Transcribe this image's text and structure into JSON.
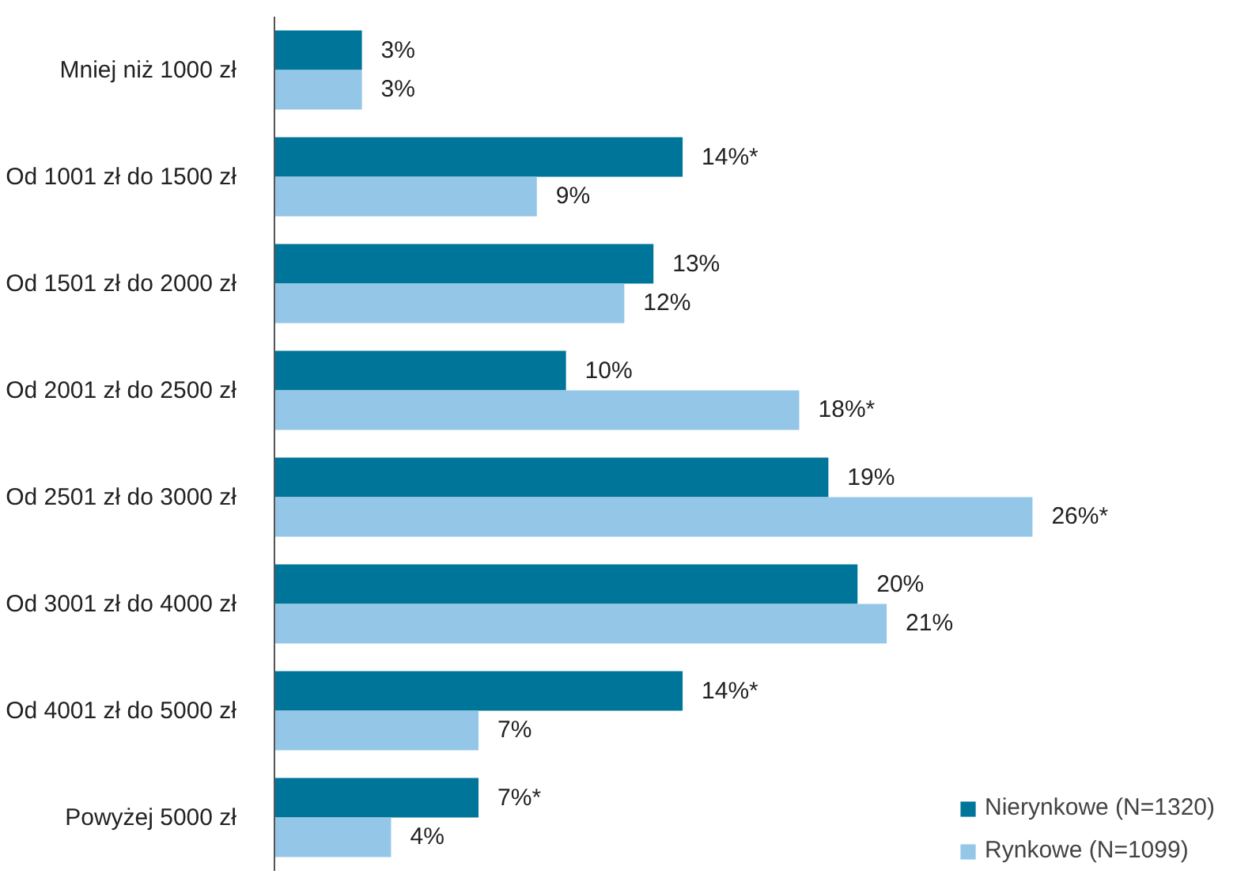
{
  "chart_data": {
    "type": "bar",
    "orientation": "horizontal",
    "categories": [
      "Mniej niż 1000 zł",
      "Od 1001 zł do 1500 zł",
      "Od 1501 zł do 2000 zł",
      "Od 2001 zł do 2500 zł",
      "Od 2501 zł do 3000 zł",
      "Od 3001 zł do 4000 zł",
      "Od 4001 zł do 5000 zł",
      "Powyżej 5000 zł"
    ],
    "series": [
      {
        "name": "Nierynkowe (N=1320)",
        "color": "#00759a",
        "values": [
          3,
          14,
          13,
          10,
          19,
          20,
          14,
          7
        ],
        "value_labels": [
          "3%",
          "14%*",
          "13%",
          "10%",
          "19%",
          "20%",
          "14%*",
          "7%*"
        ]
      },
      {
        "name": "Rynkowe (N=1099)",
        "color": "#94c6e8",
        "values": [
          3,
          9,
          12,
          18,
          26,
          21,
          7,
          4
        ],
        "value_labels": [
          "3%",
          "9%",
          "12%",
          "18%*",
          "26%*",
          "21%",
          "7%",
          "4%"
        ]
      }
    ],
    "legend": "bottom right",
    "grid": false
  }
}
